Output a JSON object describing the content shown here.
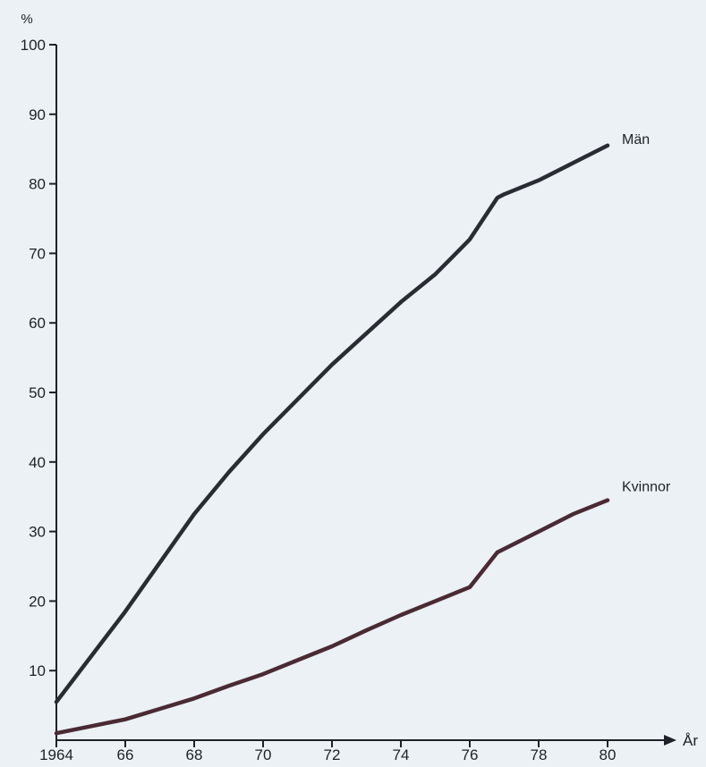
{
  "colors": {
    "background": "#ebf1f5",
    "axis": "#1e2228",
    "text": "#1e2228"
  },
  "chart_data": {
    "type": "line",
    "title": "",
    "ylabel": "%",
    "xlabel": "År",
    "ylim": [
      0,
      100
    ],
    "xlim": [
      1964,
      1980
    ],
    "y_ticks": [
      10,
      20,
      30,
      40,
      50,
      60,
      70,
      80,
      90,
      100
    ],
    "x_ticks": [
      1964,
      1966,
      1968,
      1970,
      1972,
      1974,
      1976,
      1978,
      1980
    ],
    "x_tick_labels": [
      "1964",
      "66",
      "68",
      "70",
      "72",
      "74",
      "76",
      "78",
      "80"
    ],
    "grid": false,
    "legend": "direct-labels",
    "series": [
      {
        "name": "Män",
        "color": "#2a2c33",
        "x": [
          1964,
          1965,
          1966,
          1967,
          1968,
          1969,
          1970,
          1971,
          1972,
          1973,
          1974,
          1975,
          1975.5,
          1976,
          1976.8,
          1977,
          1978,
          1979,
          1980
        ],
        "y": [
          5.5,
          12,
          18.5,
          25.5,
          32.5,
          38.5,
          44,
          49,
          54,
          58.5,
          63,
          67,
          69.5,
          72,
          78,
          78.5,
          80.5,
          83,
          85.5
        ]
      },
      {
        "name": "Kvinnor",
        "color": "#4a2a33",
        "x": [
          1964,
          1965,
          1966,
          1967,
          1968,
          1969,
          1970,
          1971,
          1972,
          1973,
          1974,
          1975,
          1976,
          1976.8,
          1977,
          1978,
          1979,
          1980
        ],
        "y": [
          1,
          2,
          3,
          4.5,
          6,
          7.8,
          9.5,
          11.5,
          13.5,
          15.8,
          18,
          20,
          22,
          27,
          27.5,
          30,
          32.5,
          34.5
        ]
      }
    ]
  }
}
